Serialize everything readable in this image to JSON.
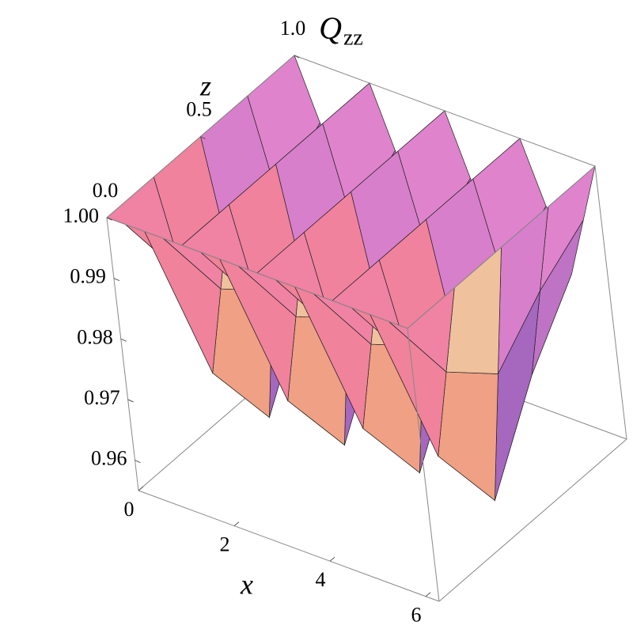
{
  "chart_data": {
    "type": "surface",
    "title": "Q",
    "title_subscript": "zz",
    "x_label": "x",
    "z_label": "z",
    "x": [
      0,
      0.39,
      0.79,
      1.18,
      1.57,
      1.96,
      2.36,
      2.75,
      3.14,
      3.53,
      3.93,
      4.32,
      4.71,
      5.11,
      5.5,
      5.89,
      6.28
    ],
    "z": [
      0,
      0.25,
      0.5,
      0.75,
      1
    ],
    "values": [
      [
        1,
        1,
        1,
        1,
        1,
        1,
        1,
        1,
        1,
        1,
        1,
        1,
        1,
        1,
        1,
        1,
        1
      ],
      [
        1,
        0.985,
        0.97,
        0.985,
        1,
        0.985,
        0.97,
        0.985,
        1,
        0.985,
        0.97,
        0.985,
        1,
        0.985,
        0.97,
        0.985,
        1
      ],
      [
        1,
        0.978,
        0.956,
        0.978,
        1,
        0.978,
        0.956,
        0.978,
        1,
        0.978,
        0.956,
        0.978,
        1,
        0.978,
        0.956,
        0.978,
        1
      ],
      [
        1,
        0.985,
        0.97,
        0.985,
        1,
        0.985,
        0.97,
        0.985,
        1,
        0.985,
        0.97,
        0.985,
        1,
        0.985,
        0.97,
        0.985,
        1
      ],
      [
        1,
        0.99,
        0.98,
        0.99,
        1,
        0.99,
        0.98,
        0.99,
        1,
        0.99,
        0.98,
        0.99,
        1,
        0.99,
        0.98,
        0.99,
        1
      ]
    ],
    "xlim": [
      0,
      6.28
    ],
    "zlim": [
      0,
      1
    ],
    "vlim": [
      0.955,
      1
    ],
    "xticks": [
      0,
      2,
      4,
      6
    ],
    "zticks": [
      {
        "value": 0,
        "label": "0.0"
      },
      0.5,
      {
        "value": 1,
        "label": "1.0"
      }
    ],
    "vticks": [
      {
        "value": 1,
        "label": "1.00"
      },
      0.99,
      0.98,
      0.97,
      0.96
    ]
  }
}
